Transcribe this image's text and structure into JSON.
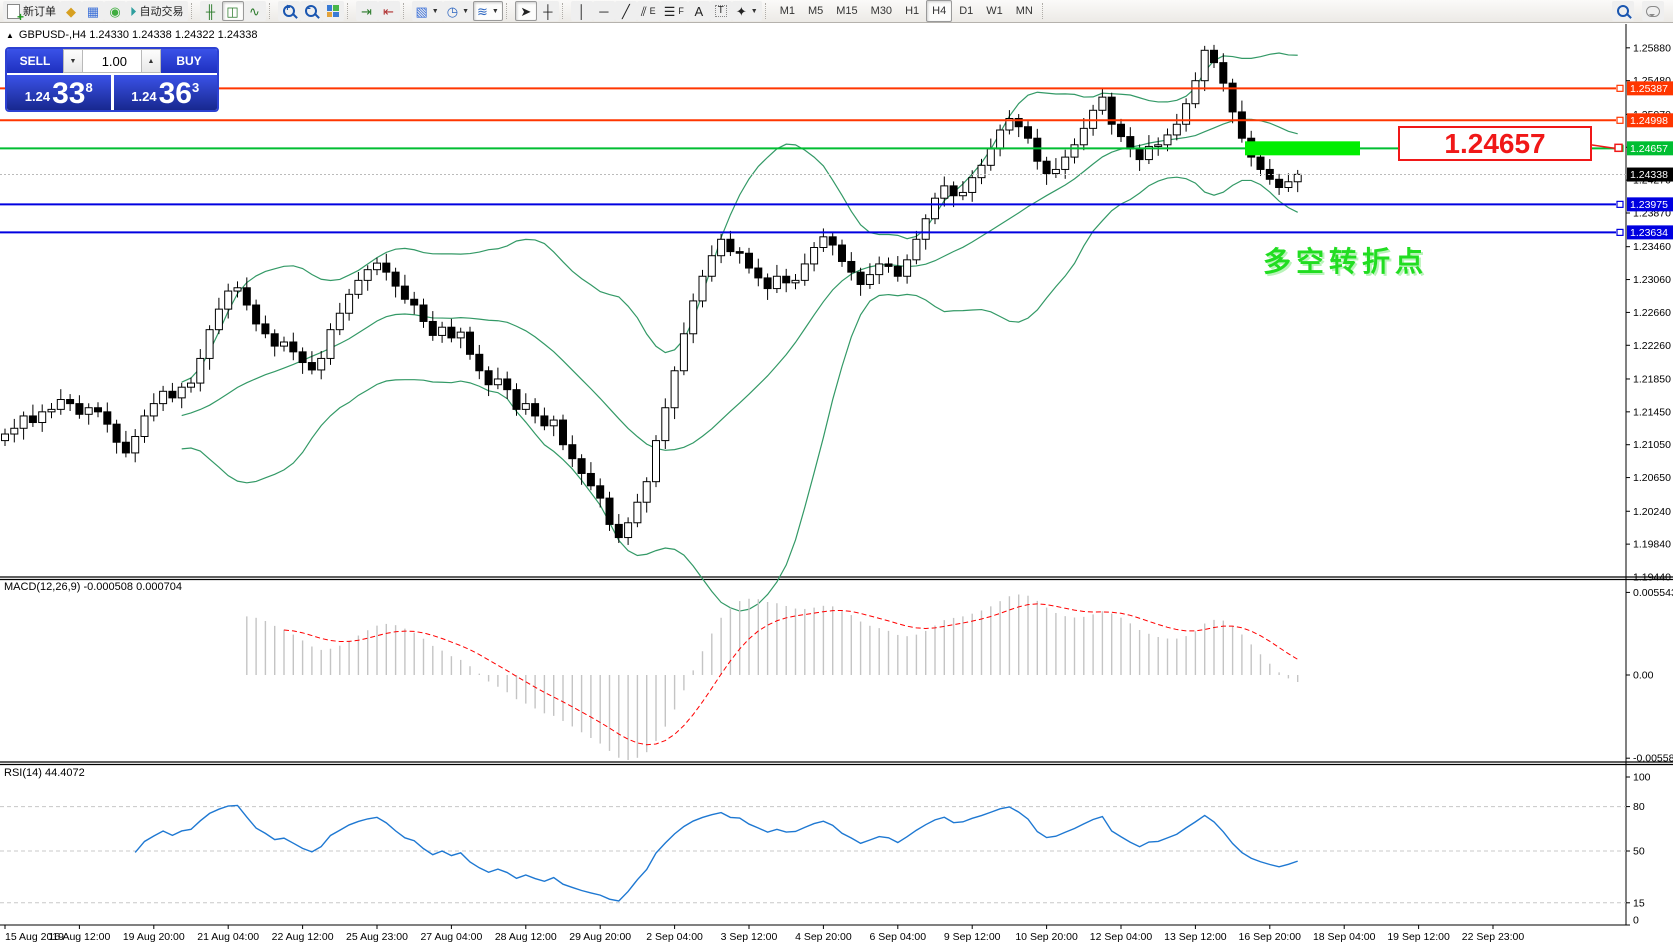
{
  "toolbar": {
    "new_order": "新订单",
    "autotrading": "自动交易",
    "timeframes": [
      "M1",
      "M5",
      "M15",
      "M30",
      "H1",
      "H4",
      "D1",
      "W1",
      "MN"
    ],
    "active_timeframe": "H4",
    "tool_letters": {
      "text_tool": "A",
      "channel_tool": "E",
      "fibo_tool": "F",
      "label_tool": "T"
    }
  },
  "symbol_bar": {
    "text": "GBPUSD-,H4  1.24330 1.24338 1.24322 1.24338"
  },
  "trade_panel": {
    "sell_label": "SELL",
    "buy_label": "BUY",
    "volume": "1.00",
    "sell_small": "1.24",
    "sell_big": "33",
    "sell_sup": "8",
    "buy_small": "1.24",
    "buy_big": "36",
    "buy_sup": "3"
  },
  "panels": {
    "macd_label": "MACD(12,26,9) -0.000508 0.000704",
    "rsi_label": "RSI(14) 44.4072"
  },
  "annotations": {
    "turning_point": "多空转折点",
    "callout": "1.24657"
  },
  "chart_data": {
    "type": "candlestick",
    "symbol": "GBPUSD-",
    "timeframe": "H4",
    "title": "GBPUSD-,H4",
    "ohlc_current": {
      "open": "1.24330",
      "high": "1.24338",
      "low": "1.24322",
      "close": "1.24338"
    },
    "first_open": 1.211,
    "closes": [
      1.2118,
      1.2125,
      1.214,
      1.2132,
      1.2145,
      1.2148,
      1.216,
      1.2155,
      1.2142,
      1.215,
      1.2145,
      1.213,
      1.2108,
      1.2095,
      1.2115,
      1.214,
      1.2155,
      1.217,
      1.2162,
      1.2175,
      1.218,
      1.221,
      1.2245,
      1.227,
      1.2292,
      1.2296,
      1.2275,
      1.2252,
      1.224,
      1.2225,
      1.223,
      1.2218,
      1.2205,
      1.2196,
      1.221,
      1.2245,
      1.2265,
      1.2288,
      1.2305,
      1.2318,
      1.2326,
      1.2315,
      1.2298,
      1.2282,
      1.2275,
      1.2255,
      1.2238,
      1.2248,
      1.2235,
      1.2242,
      1.2215,
      1.2195,
      1.2178,
      1.2185,
      1.2172,
      1.2148,
      1.2155,
      1.214,
      1.2128,
      1.2135,
      1.2105,
      1.2088,
      1.207,
      1.2055,
      1.204,
      1.2008,
      1.1992,
      1.201,
      1.2035,
      1.206,
      1.211,
      1.215,
      1.2195,
      1.224,
      1.228,
      1.231,
      1.2335,
      1.2355,
      1.234,
      1.2338,
      1.232,
      1.2308,
      1.2295,
      1.231,
      1.2302,
      1.2305,
      1.2325,
      1.2345,
      1.2358,
      1.2348,
      1.2328,
      1.2315,
      1.23,
      1.2312,
      1.2325,
      1.2322,
      1.231,
      1.233,
      1.2355,
      1.238,
      1.2405,
      1.242,
      1.2408,
      1.2412,
      1.243,
      1.2445,
      1.2465,
      1.2488,
      1.2502,
      1.2492,
      1.2478,
      1.245,
      1.2435,
      1.244,
      1.2455,
      1.247,
      1.249,
      1.2512,
      1.2528,
      1.2495,
      1.248,
      1.2465,
      1.2452,
      1.2468,
      1.247,
      1.2482,
      1.2495,
      1.252,
      1.2548,
      1.2585,
      1.257,
      1.2545,
      1.251,
      1.2478,
      1.2455,
      1.244,
      1.2428,
      1.2418,
      1.2425,
      1.2434
    ],
    "x_labels": [
      "15 Aug 2019",
      "16 Aug 12:00",
      "19 Aug 20:00",
      "21 Aug 04:00",
      "22 Aug 12:00",
      "25 Aug 23:00",
      "27 Aug 04:00",
      "28 Aug 12:00",
      "29 Aug 20:00",
      "2 Sep 04:00",
      "3 Sep 12:00",
      "4 Sep 20:00",
      "6 Sep 04:00",
      "9 Sep 12:00",
      "10 Sep 20:00",
      "12 Sep 04:00",
      "13 Sep 12:00",
      "16 Sep 20:00",
      "18 Sep 04:00",
      "19 Sep 12:00",
      "22 Sep 23:00"
    ],
    "x_label_every_n_bars": 8,
    "y_range_main": [
      1.1944,
      1.2617
    ],
    "price_ticks": [
      "1.25880",
      "1.25480",
      "1.25070",
      "1.24670",
      "1.24270",
      "1.23870",
      "1.23460",
      "1.23060",
      "1.22660",
      "1.22260",
      "1.21850",
      "1.21450",
      "1.21050",
      "1.20650",
      "1.20240",
      "1.19840",
      "1.19440"
    ],
    "levels": [
      {
        "price": 1.25387,
        "label": "1.25387",
        "color": "#FF3600"
      },
      {
        "price": 1.24998,
        "label": "1.24998",
        "color": "#FF3600"
      },
      {
        "price": 1.24657,
        "label": "1.24657",
        "color": "#00BE32",
        "highlight": true
      },
      {
        "price": 1.23975,
        "label": "1.23975",
        "color": "#0000E0"
      },
      {
        "price": 1.23634,
        "label": "1.23634",
        "color": "#0000E0"
      }
    ],
    "current_price": {
      "value": 1.24338,
      "label": "1.24338"
    },
    "indicators": {
      "bollinger": {
        "period": 20,
        "deviation": 2,
        "color": "#339966"
      },
      "macd": {
        "params": [
          12,
          26,
          9
        ],
        "values": [
          -0.000508,
          0.000704
        ],
        "axis_ticks": [
          "0.005543",
          "0.00",
          "-0.005583"
        ],
        "hist_color": "#C4C4C4",
        "signal_color": "#FF0000"
      },
      "rsi": {
        "period": 14,
        "value": 44.4072,
        "levels": [
          80,
          50,
          15
        ],
        "axis_ticks": [
          "100",
          "80",
          "50",
          "15",
          "0"
        ],
        "color": "#1E78D2",
        "range": [
          0,
          100
        ]
      }
    },
    "colors": {
      "bull": "#FFFFFF",
      "bear": "#000000",
      "outline": "#000000",
      "highlight_rect": "#00EE00",
      "callout_red": "#F01818",
      "bid_line": "#BBBBBB"
    }
  }
}
